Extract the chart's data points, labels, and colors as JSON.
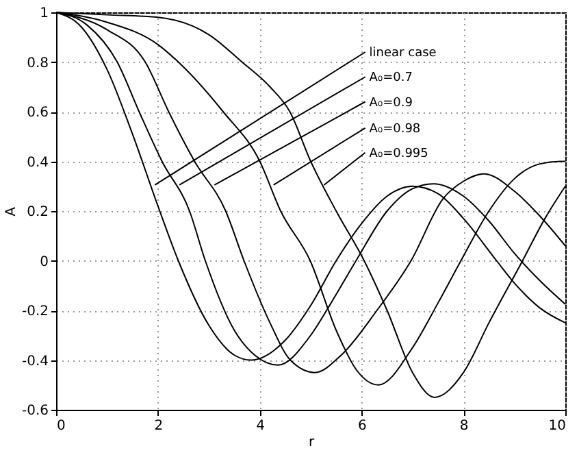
{
  "chart_data": {
    "type": "line",
    "xlabel": "r",
    "ylabel": "A",
    "xlim": [
      0,
      10
    ],
    "xticks": [
      0,
      2,
      4,
      6,
      8,
      10
    ],
    "ylim": [
      -0.6,
      1
    ],
    "yticks": [
      -0.6,
      -0.4,
      -0.2,
      0,
      0.2,
      0.4,
      0.6,
      0.8,
      1
    ],
    "grid": true,
    "line_style": "solid",
    "marker": "none",
    "series": [
      {
        "color": "#000000",
        "x": [
          0,
          0.5,
          1,
          1.5,
          2,
          2.4,
          3,
          3.5,
          3.83,
          4.5,
          5,
          5.5,
          6,
          6.5,
          7,
          7.5,
          8,
          8.65,
          9,
          9.5,
          10
        ],
        "values": [
          1,
          0.94,
          0.77,
          0.51,
          0.22,
          0,
          -0.26,
          -0.38,
          -0.4,
          -0.32,
          -0.18,
          0,
          0.15,
          0.26,
          0.3,
          0.27,
          0.17,
          0,
          -0.09,
          -0.19,
          -0.25
        ]
      },
      {
        "color": "#000000",
        "x": [
          0,
          0.6,
          1.2,
          1.63,
          2.08,
          2.62,
          2.93,
          3.5,
          3.9,
          4.36,
          5,
          5.4,
          5.89,
          6.5,
          7,
          7.41,
          8,
          8.5,
          9,
          9.5,
          10
        ],
        "values": [
          1,
          0.95,
          0.8,
          0.6,
          0.4,
          0.2,
          0,
          -0.28,
          -0.38,
          -0.42,
          -0.3,
          -0.17,
          0,
          0.2,
          0.29,
          0.31,
          0.26,
          0.16,
          0.03,
          -0.08,
          -0.175
        ]
      },
      {
        "color": "#000000",
        "x": [
          0,
          1,
          1.75,
          2.21,
          2.72,
          3.33,
          3.69,
          4.2,
          4.6,
          5.08,
          5.6,
          6.3,
          6.97,
          7.6,
          8,
          8.4,
          9,
          9.5,
          10
        ],
        "values": [
          1,
          0.93,
          0.8,
          0.6,
          0.4,
          0.2,
          0,
          -0.25,
          -0.4,
          -0.45,
          -0.38,
          -0.2,
          0,
          0.25,
          0.32,
          0.35,
          0.28,
          0.18,
          0.06
        ]
      },
      {
        "color": "#000000",
        "x": [
          0,
          1,
          2,
          2.4,
          3.28,
          4,
          4.41,
          4.99,
          5.5,
          5.9,
          6.33,
          7,
          7.5,
          7.95,
          8.5,
          9,
          9.5,
          9.9,
          10
        ],
        "values": [
          1,
          0.96,
          0.87,
          0.8,
          0.6,
          0.4,
          0.2,
          0,
          -0.28,
          -0.44,
          -0.5,
          -0.35,
          -0.17,
          0,
          0.2,
          0.33,
          0.39,
          0.4,
          0.4
        ]
      },
      {
        "color": "#000000",
        "x": [
          0,
          1,
          2,
          3,
          3.65,
          4.2,
          4.59,
          5,
          5.5,
          6.05,
          6.5,
          7,
          7.43,
          8,
          8.5,
          9.16,
          9.6,
          10
        ],
        "values": [
          1,
          0.99,
          0.98,
          0.91,
          0.8,
          0.7,
          0.6,
          0.4,
          0.2,
          0,
          -0.2,
          -0.45,
          -0.55,
          -0.45,
          -0.25,
          0,
          0.17,
          0.3
        ]
      }
    ],
    "annotations": [
      {
        "text": "linear case",
        "x": 1.94,
        "y": 0.305
      },
      {
        "text": "A₀=0.7",
        "x": 2.42,
        "y": 0.305
      },
      {
        "text": "A₀=0.9",
        "x": 3.11,
        "y": 0.305
      },
      {
        "text": "A₀=0.98",
        "x": 4.27,
        "y": 0.305
      },
      {
        "text": "A₀=0.995",
        "x": 5.26,
        "y": 0.305
      }
    ]
  }
}
